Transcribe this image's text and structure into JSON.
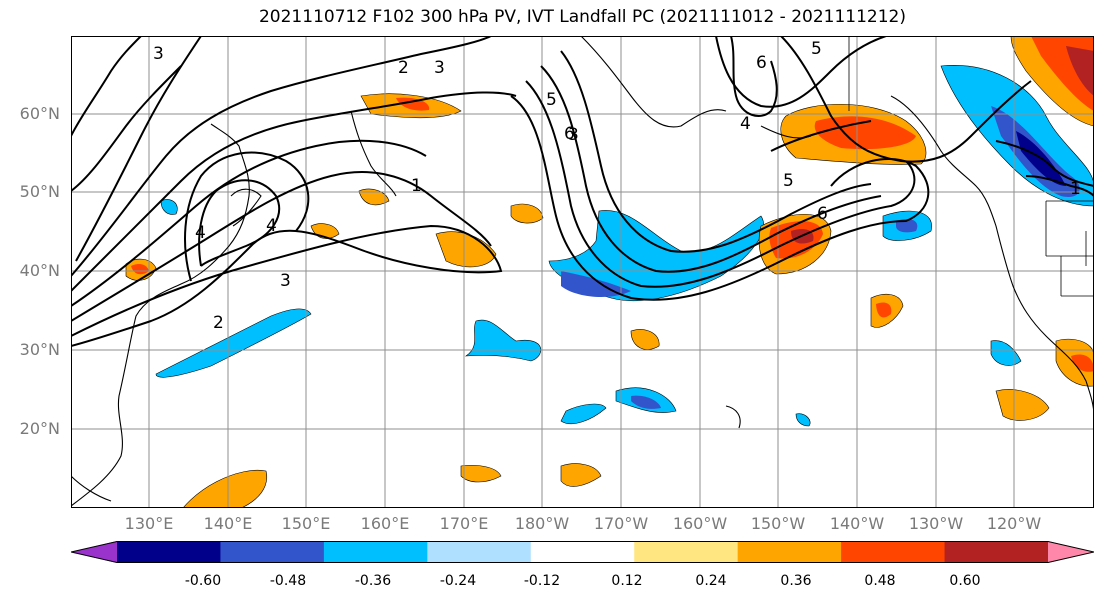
{
  "title": "2021110712 F102 300 hPa PV, IVT Landfall PC (2021111012 - 2021111212)",
  "lat_labels": [
    "60°N",
    "50°N",
    "40°N",
    "30°N",
    "20°N"
  ],
  "lon_labels": [
    "130°E",
    "140°E",
    "150°E",
    "160°E",
    "170°E",
    "180°W",
    "170°W",
    "160°W",
    "150°W",
    "140°W",
    "130°W",
    "120°W"
  ],
  "contour_labels": [
    "3",
    "2",
    "3",
    "5",
    "6",
    "5",
    "6",
    "3",
    "4",
    "5",
    "1",
    "6",
    "4",
    "4",
    "3",
    "2",
    "1"
  ],
  "colorbar": {
    "colors": [
      "#9933cc",
      "#00008b",
      "#3355cc",
      "#00bfff",
      "#b0e0ff",
      "#ffffff",
      "#ffe680",
      "#ffa500",
      "#ff4500",
      "#b22222",
      "#ff88aa"
    ],
    "tick_labels": [
      "-0.60",
      "-0.48",
      "-0.36",
      "-0.24",
      "-0.12",
      "0.12",
      "0.24",
      "0.36",
      "0.48",
      "0.60"
    ]
  }
}
